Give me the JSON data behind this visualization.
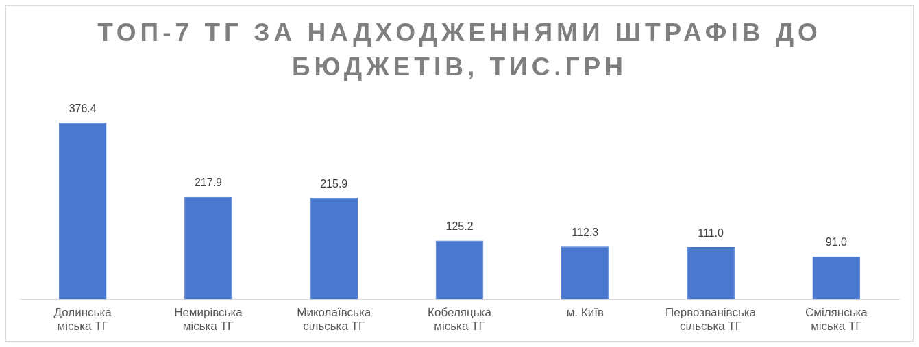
{
  "chart_data": {
    "type": "bar",
    "title": "ТОП-7 ТГ ЗА НАДХОДЖЕННЯМИ ШТРАФІВ ДО БЮДЖЕТІВ, ТИС.ГРН",
    "categories": [
      "Долинська міська ТГ",
      "Немирівська міська ТГ",
      "Миколаївська сільська ТГ",
      "Кобеляцька міська ТГ",
      "м. Київ",
      "Первозванівська сільська ТГ",
      "Смілянська міська ТГ"
    ],
    "values": [
      376.4,
      217.9,
      215.9,
      125.2,
      112.3,
      111.0,
      91.0
    ],
    "value_labels": [
      "376.4",
      "217.9",
      "215.9",
      "125.2",
      "112.3",
      "111.0",
      "91.0"
    ],
    "color": "#4a78cf",
    "grid": false,
    "legend": false,
    "tick_labels": "x"
  }
}
